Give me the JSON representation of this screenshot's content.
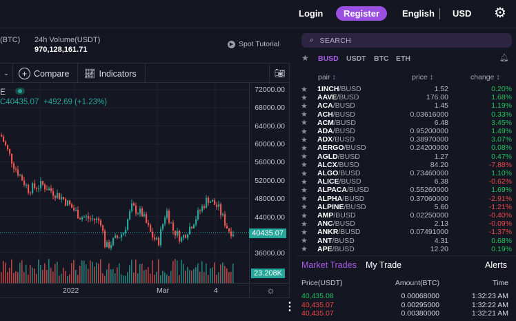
{
  "header": {
    "login": "Login",
    "register": "Register",
    "language": "English",
    "currency": "USD"
  },
  "ticker": {
    "prev_label": "(BTC)",
    "volume_label": "24h Volume(USDT)",
    "volume_value": "970,128,161.71",
    "tutorial": "Spot Tutorial"
  },
  "toolbar": {
    "compare": "Compare",
    "indicators": "Indicators"
  },
  "chart": {
    "symbol_tail": "E",
    "price_line": "C40435.07",
    "change": "+492.69 (+1.23%)",
    "current_price": "40435.07",
    "volume_tag": "23.208K",
    "y_ticks": [
      "72000.00",
      "68000.00",
      "64000.00",
      "60000.00",
      "56000.00",
      "52000.00",
      "48000.00",
      "44000.00",
      "36000.00"
    ],
    "x_ticks": [
      "2022",
      "Mar",
      "4"
    ],
    "up_color": "#26a69a",
    "down_color": "#ef5350"
  },
  "market": {
    "search_placeholder": "SEARCH",
    "quotes": [
      "BUSD",
      "USDT",
      "BTC",
      "ETH"
    ],
    "active_quote": "BUSD",
    "headers": {
      "pair": "pair",
      "price": "price",
      "change": "change"
    },
    "rows": [
      {
        "base": "1INCH",
        "quote": "/BUSD",
        "price": "1.52",
        "change": "0.20%",
        "up": true
      },
      {
        "base": "AAVE",
        "quote": "/BUSD",
        "price": "176.00",
        "change": "1.68%",
        "up": true
      },
      {
        "base": "ACA",
        "quote": "/BUSD",
        "price": "1.45",
        "change": "1.19%",
        "up": true
      },
      {
        "base": "ACH",
        "quote": "/BUSD",
        "price": "0.03616000",
        "change": "0.33%",
        "up": true
      },
      {
        "base": "ACM",
        "quote": "/BUSD",
        "price": "6.48",
        "change": "3.45%",
        "up": true
      },
      {
        "base": "ADA",
        "quote": "/BUSD",
        "price": "0.95200000",
        "change": "1.49%",
        "up": true
      },
      {
        "base": "ADX",
        "quote": "/BUSD",
        "price": "0.38970000",
        "change": "3.07%",
        "up": true
      },
      {
        "base": "AERGO",
        "quote": "/BUSD",
        "price": "0.24200000",
        "change": "0.08%",
        "up": true
      },
      {
        "base": "AGLD",
        "quote": "/BUSD",
        "price": "1.27",
        "change": "0.47%",
        "up": true
      },
      {
        "base": "ALCX",
        "quote": "/BUSD",
        "price": "84.20",
        "change": "-7.88%",
        "up": false
      },
      {
        "base": "ALGO",
        "quote": "/BUSD",
        "price": "0.73460000",
        "change": "1.10%",
        "up": true
      },
      {
        "base": "ALICE",
        "quote": "/BUSD",
        "price": "6.38",
        "change": "-0.62%",
        "up": false
      },
      {
        "base": "ALPACA",
        "quote": "/BUSD",
        "price": "0.55260000",
        "change": "1.69%",
        "up": true
      },
      {
        "base": "ALPHA",
        "quote": "/BUSD",
        "price": "0.37060000",
        "change": "-2.91%",
        "up": false
      },
      {
        "base": "ALPINE",
        "quote": "/BUSD",
        "price": "5.60",
        "change": "-1.21%",
        "up": false
      },
      {
        "base": "AMP",
        "quote": "/BUSD",
        "price": "0.02250000",
        "change": "-0.40%",
        "up": false
      },
      {
        "base": "ANC",
        "quote": "/BUSD",
        "price": "2.13",
        "change": "-0.09%",
        "up": false
      },
      {
        "base": "ANKR",
        "quote": "/BUSD",
        "price": "0.07491000",
        "change": "-1.37%",
        "up": false
      },
      {
        "base": "ANT",
        "quote": "/BUSD",
        "price": "4.31",
        "change": "0.68%",
        "up": true
      },
      {
        "base": "APE",
        "quote": "/BUSD",
        "price": "12.20",
        "change": "0.19%",
        "up": true
      }
    ]
  },
  "trades": {
    "tabs": [
      "Market Trades",
      "My Trade"
    ],
    "alerts": "Alerts",
    "headers": [
      "Price(USDT)",
      "Amount(BTC)",
      "Time"
    ],
    "rows": [
      {
        "price": "40,435.08",
        "amount": "0.00068000",
        "time": "1:32:23 AM",
        "up": true
      },
      {
        "price": "40,435.07",
        "amount": "0.00295000",
        "time": "1:32:22 AM",
        "up": false
      },
      {
        "price": "40,435.07",
        "amount": "0.00380000",
        "time": "1:32:21 AM",
        "up": false
      }
    ]
  },
  "colors": {
    "accent": "#9b4fe0",
    "up": "#1fc35a",
    "down": "#f04747",
    "teal": "#26a69a"
  }
}
